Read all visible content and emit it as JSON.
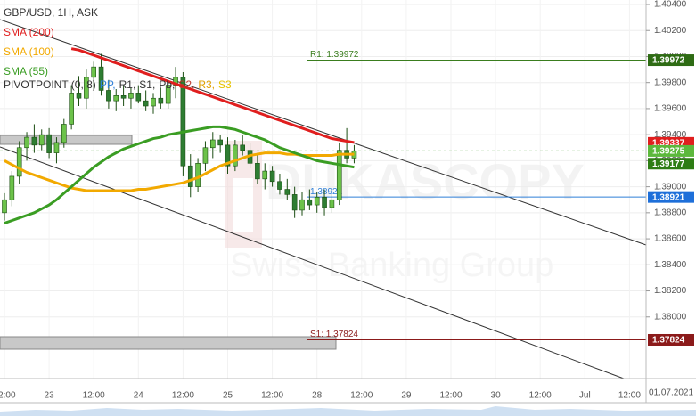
{
  "chart_data": {
    "type": "candlestick",
    "title": "GBP/USD, 1H, ASK",
    "categories": [
      "12:00",
      null,
      null,
      null,
      null,
      null,
      "23",
      null,
      null,
      null,
      null,
      null,
      "12:00",
      null,
      null,
      null,
      null,
      null,
      "24",
      null,
      null,
      null,
      null,
      null,
      "12:00",
      null,
      null,
      null,
      null,
      null,
      "25",
      null,
      null,
      null,
      null,
      null,
      "12:00",
      null,
      null,
      null,
      null,
      null,
      "28",
      null,
      null,
      null,
      null,
      null,
      "12:00",
      null,
      null,
      null,
      null,
      null,
      "29",
      null,
      null,
      null,
      null,
      null,
      "12:00",
      null,
      null,
      null,
      null,
      null,
      "30",
      null,
      null,
      null,
      null,
      null,
      "12:00",
      null,
      null,
      null,
      null,
      null,
      "Jul",
      null,
      null,
      null,
      null,
      null,
      "12:00"
    ],
    "open": [
      1.388,
      1.389,
      1.3908,
      1.393,
      1.3938,
      1.3932,
      1.394,
      1.3926,
      1.3934,
      1.3948,
      1.3972,
      1.3968,
      1.3984,
      1.3992,
      1.3974,
      1.3966,
      1.397,
      1.3968,
      1.3972,
      1.3966,
      1.3962,
      1.3968,
      1.3964,
      1.3978,
      1.3984,
      1.3916,
      1.39,
      1.3918,
      1.393,
      1.3936,
      1.3932,
      1.3916,
      1.3932,
      1.3928,
      1.3918,
      1.3906,
      1.3912,
      1.3904,
      1.3898,
      1.3894,
      1.3882,
      1.389,
      1.3886,
      1.3892,
      1.3884,
      1.389,
      1.3928,
      1.3922,
      null,
      null,
      null,
      null,
      null,
      null,
      null,
      null,
      null,
      null,
      null,
      null,
      null,
      null,
      null,
      null,
      null,
      null,
      null,
      null,
      null,
      null,
      null,
      null,
      null,
      null,
      null,
      null,
      null,
      null,
      null,
      null,
      null,
      null,
      null,
      null,
      null
    ],
    "high": [
      1.3895,
      1.3912,
      1.3935,
      1.3942,
      1.3948,
      1.3944,
      1.3945,
      1.3938,
      1.3952,
      1.3978,
      1.3985,
      1.399,
      1.3996,
      1.4002,
      1.3982,
      1.3975,
      1.3978,
      1.3976,
      1.3978,
      1.3974,
      1.3972,
      1.3976,
      1.3982,
      1.3992,
      1.3988,
      1.3925,
      1.3922,
      1.3935,
      1.3942,
      1.394,
      1.3938,
      1.3936,
      1.394,
      1.3934,
      1.3926,
      1.3918,
      1.3916,
      1.391,
      1.3906,
      1.39,
      1.3896,
      1.3898,
      1.3896,
      1.3898,
      1.3894,
      1.3934,
      1.3945,
      1.3932,
      null,
      null,
      null,
      null,
      null,
      null,
      null,
      null,
      null,
      null,
      null,
      null,
      null,
      null,
      null,
      null,
      null,
      null,
      null,
      null,
      null,
      null,
      null,
      null,
      null,
      null,
      null,
      null,
      null,
      null,
      null,
      null,
      null,
      null,
      null,
      null,
      null
    ],
    "low": [
      1.3874,
      1.3885,
      1.3902,
      1.392,
      1.3926,
      1.3928,
      1.3922,
      1.3918,
      1.393,
      1.3944,
      1.3962,
      1.396,
      1.3975,
      1.397,
      1.396,
      1.3958,
      1.3962,
      1.396,
      1.3964,
      1.3958,
      1.3956,
      1.396,
      1.396,
      1.3968,
      1.3908,
      1.3892,
      1.3896,
      1.3912,
      1.3922,
      1.3926,
      1.391,
      1.3912,
      1.3924,
      1.3914,
      1.3902,
      1.3898,
      1.39,
      1.3894,
      1.389,
      1.3876,
      1.3878,
      1.3882,
      1.388,
      1.3878,
      1.388,
      1.3886,
      1.3918,
      1.3918,
      null,
      null,
      null,
      null,
      null,
      null,
      null,
      null,
      null,
      null,
      null,
      null,
      null,
      null,
      null,
      null,
      null,
      null,
      null,
      null,
      null,
      null,
      null,
      null,
      null,
      null,
      null,
      null,
      null,
      null,
      null,
      null,
      null,
      null,
      null,
      null,
      null
    ],
    "close": [
      1.389,
      1.3908,
      1.393,
      1.3938,
      1.3932,
      1.394,
      1.3926,
      1.3934,
      1.3948,
      1.3972,
      1.3968,
      1.3984,
      1.3992,
      1.3974,
      1.3966,
      1.397,
      1.3968,
      1.3972,
      1.3966,
      1.3962,
      1.3968,
      1.3964,
      1.3978,
      1.3984,
      1.3916,
      1.39,
      1.3918,
      1.393,
      1.3936,
      1.3932,
      1.3916,
      1.3932,
      1.3928,
      1.3918,
      1.3906,
      1.3912,
      1.3904,
      1.3898,
      1.3894,
      1.3882,
      1.389,
      1.3886,
      1.3892,
      1.3884,
      1.389,
      1.3928,
      1.3922,
      1.39275,
      null,
      null,
      null,
      null,
      null,
      null,
      null,
      null,
      null,
      null,
      null,
      null,
      null,
      null,
      null,
      null,
      null,
      null,
      null,
      null,
      null,
      null,
      null,
      null,
      null,
      null,
      null,
      null,
      null,
      null,
      null,
      null,
      null,
      null,
      null,
      null,
      null
    ],
    "up_color": "#6cc24a",
    "down_color": "#2e7d32",
    "series": [
      {
        "name": "SMA (200)",
        "color": "#e01e1e",
        "values": [
          null,
          null,
          null,
          null,
          null,
          null,
          null,
          null,
          null,
          1.4006,
          1.4005,
          1.4003,
          1.4001,
          1.3999,
          1.3997,
          1.3995,
          1.3993,
          1.3991,
          1.3989,
          1.3987,
          1.3985,
          1.3983,
          1.3981,
          1.3979,
          1.3977,
          1.3975,
          1.3973,
          1.3971,
          1.3969,
          1.3967,
          1.3965,
          1.3963,
          1.3961,
          1.3959,
          1.3957,
          1.3955,
          1.3953,
          1.3951,
          1.3949,
          1.3947,
          1.3945,
          1.3943,
          1.3941,
          1.3939,
          1.3937,
          1.3936,
          1.3935,
          1.3934,
          null,
          null,
          null,
          null,
          null,
          null,
          null,
          null,
          null,
          null,
          null,
          null,
          null,
          null,
          null,
          null,
          null,
          null,
          null,
          null,
          null,
          null,
          null,
          null,
          null,
          null,
          null,
          null,
          null,
          null,
          null,
          null,
          null,
          null,
          null,
          null,
          null
        ]
      },
      {
        "name": "SMA (100)",
        "color": "#f2a900",
        "values": [
          1.392,
          1.3917,
          1.3914,
          1.3911,
          1.3909,
          1.3907,
          1.3905,
          1.3903,
          1.3901,
          1.3899,
          1.3898,
          1.3897,
          1.3897,
          1.3897,
          1.3897,
          1.3897,
          1.3897,
          1.3897,
          1.3898,
          1.3898,
          1.3899,
          1.39,
          1.3901,
          1.3902,
          1.3903,
          1.3905,
          1.3907,
          1.391,
          1.3913,
          1.3916,
          1.3918,
          1.392,
          1.3922,
          1.3924,
          1.3925,
          1.3926,
          1.3926,
          1.3926,
          1.3925,
          1.3925,
          1.3924,
          1.3924,
          1.3924,
          1.3924,
          1.3924,
          1.3925,
          1.3925,
          1.3925,
          null,
          null,
          null,
          null,
          null,
          null,
          null,
          null,
          null,
          null,
          null,
          null,
          null,
          null,
          null,
          null,
          null,
          null,
          null,
          null,
          null,
          null,
          null,
          null,
          null,
          null,
          null,
          null,
          null,
          null,
          null,
          null,
          null,
          null,
          null,
          null,
          null
        ]
      },
      {
        "name": "SMA (55)",
        "color": "#3a9d23",
        "values": [
          1.3872,
          1.3874,
          1.3876,
          1.3878,
          1.388,
          1.3883,
          1.3886,
          1.389,
          1.3895,
          1.39,
          1.3905,
          1.391,
          1.3915,
          1.3919,
          1.3923,
          1.3926,
          1.3929,
          1.3931,
          1.3933,
          1.3935,
          1.3937,
          1.3938,
          1.394,
          1.3941,
          1.3942,
          1.3943,
          1.3944,
          1.3945,
          1.3946,
          1.3946,
          1.3945,
          1.3944,
          1.3942,
          1.394,
          1.3938,
          1.3936,
          1.3933,
          1.393,
          1.3928,
          1.3926,
          1.3924,
          1.3922,
          1.392,
          1.3919,
          1.3918,
          1.3917,
          1.3916,
          1.3915,
          null,
          null,
          null,
          null,
          null,
          null,
          null,
          null,
          null,
          null,
          null,
          null,
          null,
          null,
          null,
          null,
          null,
          null,
          null,
          null,
          null,
          null,
          null,
          null,
          null,
          null,
          null,
          null,
          null,
          null,
          null,
          null,
          null,
          null,
          null,
          null,
          null
        ]
      }
    ],
    "indicator": "PIVOTPOINT (0, 8)",
    "indicator_items": [
      {
        "text": "PP,",
        "color": "#2f7fd8"
      },
      {
        "text": "R1,",
        "color": "#333333"
      },
      {
        "text": "S1,",
        "color": "#333333"
      },
      {
        "text": "Pb,",
        "color": "#333333"
      },
      {
        "text": "S2,",
        "color": "#c0392b"
      },
      {
        "text": "R3,",
        "color": "#e0a000"
      },
      {
        "text": "S3",
        "color": "#e6c200"
      }
    ],
    "pivots": [
      {
        "label": "R1: 1.39972",
        "value": 1.39972,
        "color": "#3a7d1e"
      },
      {
        "label": "1.38921",
        "value": 1.38921,
        "color": "#2f7fd8"
      },
      {
        "label": "S1: 1.37824",
        "value": 1.37824,
        "color": "#8b1a1a"
      }
    ],
    "price_tags": [
      {
        "value": 1.39972,
        "color": "#2e6b14"
      },
      {
        "value": 1.39337,
        "color": "#e01e1e"
      },
      {
        "value": 1.39275,
        "color": "#5cb83c"
      },
      {
        "value": 1.39177,
        "color": "#2e7d14"
      },
      {
        "value": 1.38921,
        "color": "#1e6fd9"
      },
      {
        "value": 1.37824,
        "color": "#8b1a1a"
      }
    ],
    "ylim": [
      1.378,
      1.404
    ],
    "yticks": [
      {
        "value": 1.404,
        "label": "1.40400"
      },
      {
        "value": 1.402,
        "label": "1.40200"
      },
      {
        "value": 1.4,
        "label": "1.40000"
      },
      {
        "value": 1.398,
        "label": "1.39800"
      },
      {
        "value": 1.396,
        "label": "1.39600"
      },
      {
        "value": 1.394,
        "label": "1.39400"
      },
      {
        "value": 1.392,
        "label": "1.39200"
      },
      {
        "value": 1.39,
        "label": "1.39000"
      },
      {
        "value": 1.388,
        "label": "1.38800"
      },
      {
        "value": 1.386,
        "label": "1.38600"
      },
      {
        "value": 1.384,
        "label": "1.38400"
      },
      {
        "value": 1.382,
        "label": "1.38200"
      },
      {
        "value": 1.38,
        "label": "1.38000"
      }
    ],
    "grid": true,
    "date_label": "01.07.2021",
    "watermark": "DUKASCOPY",
    "watermark_sub": "Swiss Banking Group"
  }
}
